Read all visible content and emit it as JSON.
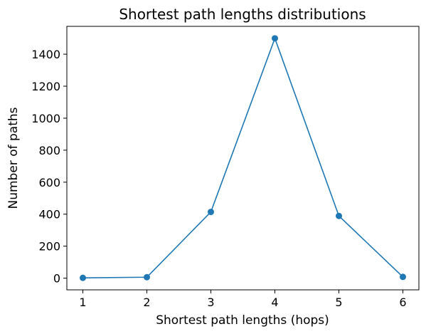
{
  "chart_data": {
    "type": "line",
    "title": "Shortest path lengths distributions",
    "xlabel": "Shortest path lengths (hops)",
    "ylabel": "Number of paths",
    "x": [
      1,
      2,
      3,
      4,
      5,
      6
    ],
    "series": [
      {
        "values": [
          2,
          6,
          414,
          1499,
          389,
          8
        ],
        "color": "#1f77b4",
        "marker": "circle"
      }
    ],
    "xticks": [
      1,
      2,
      3,
      4,
      5,
      6
    ],
    "yticks": [
      0,
      200,
      400,
      600,
      800,
      1000,
      1200,
      1400
    ],
    "xlim": [
      0.75,
      6.25
    ],
    "ylim": [
      -73,
      1574
    ],
    "grid": false,
    "legend": "none"
  }
}
